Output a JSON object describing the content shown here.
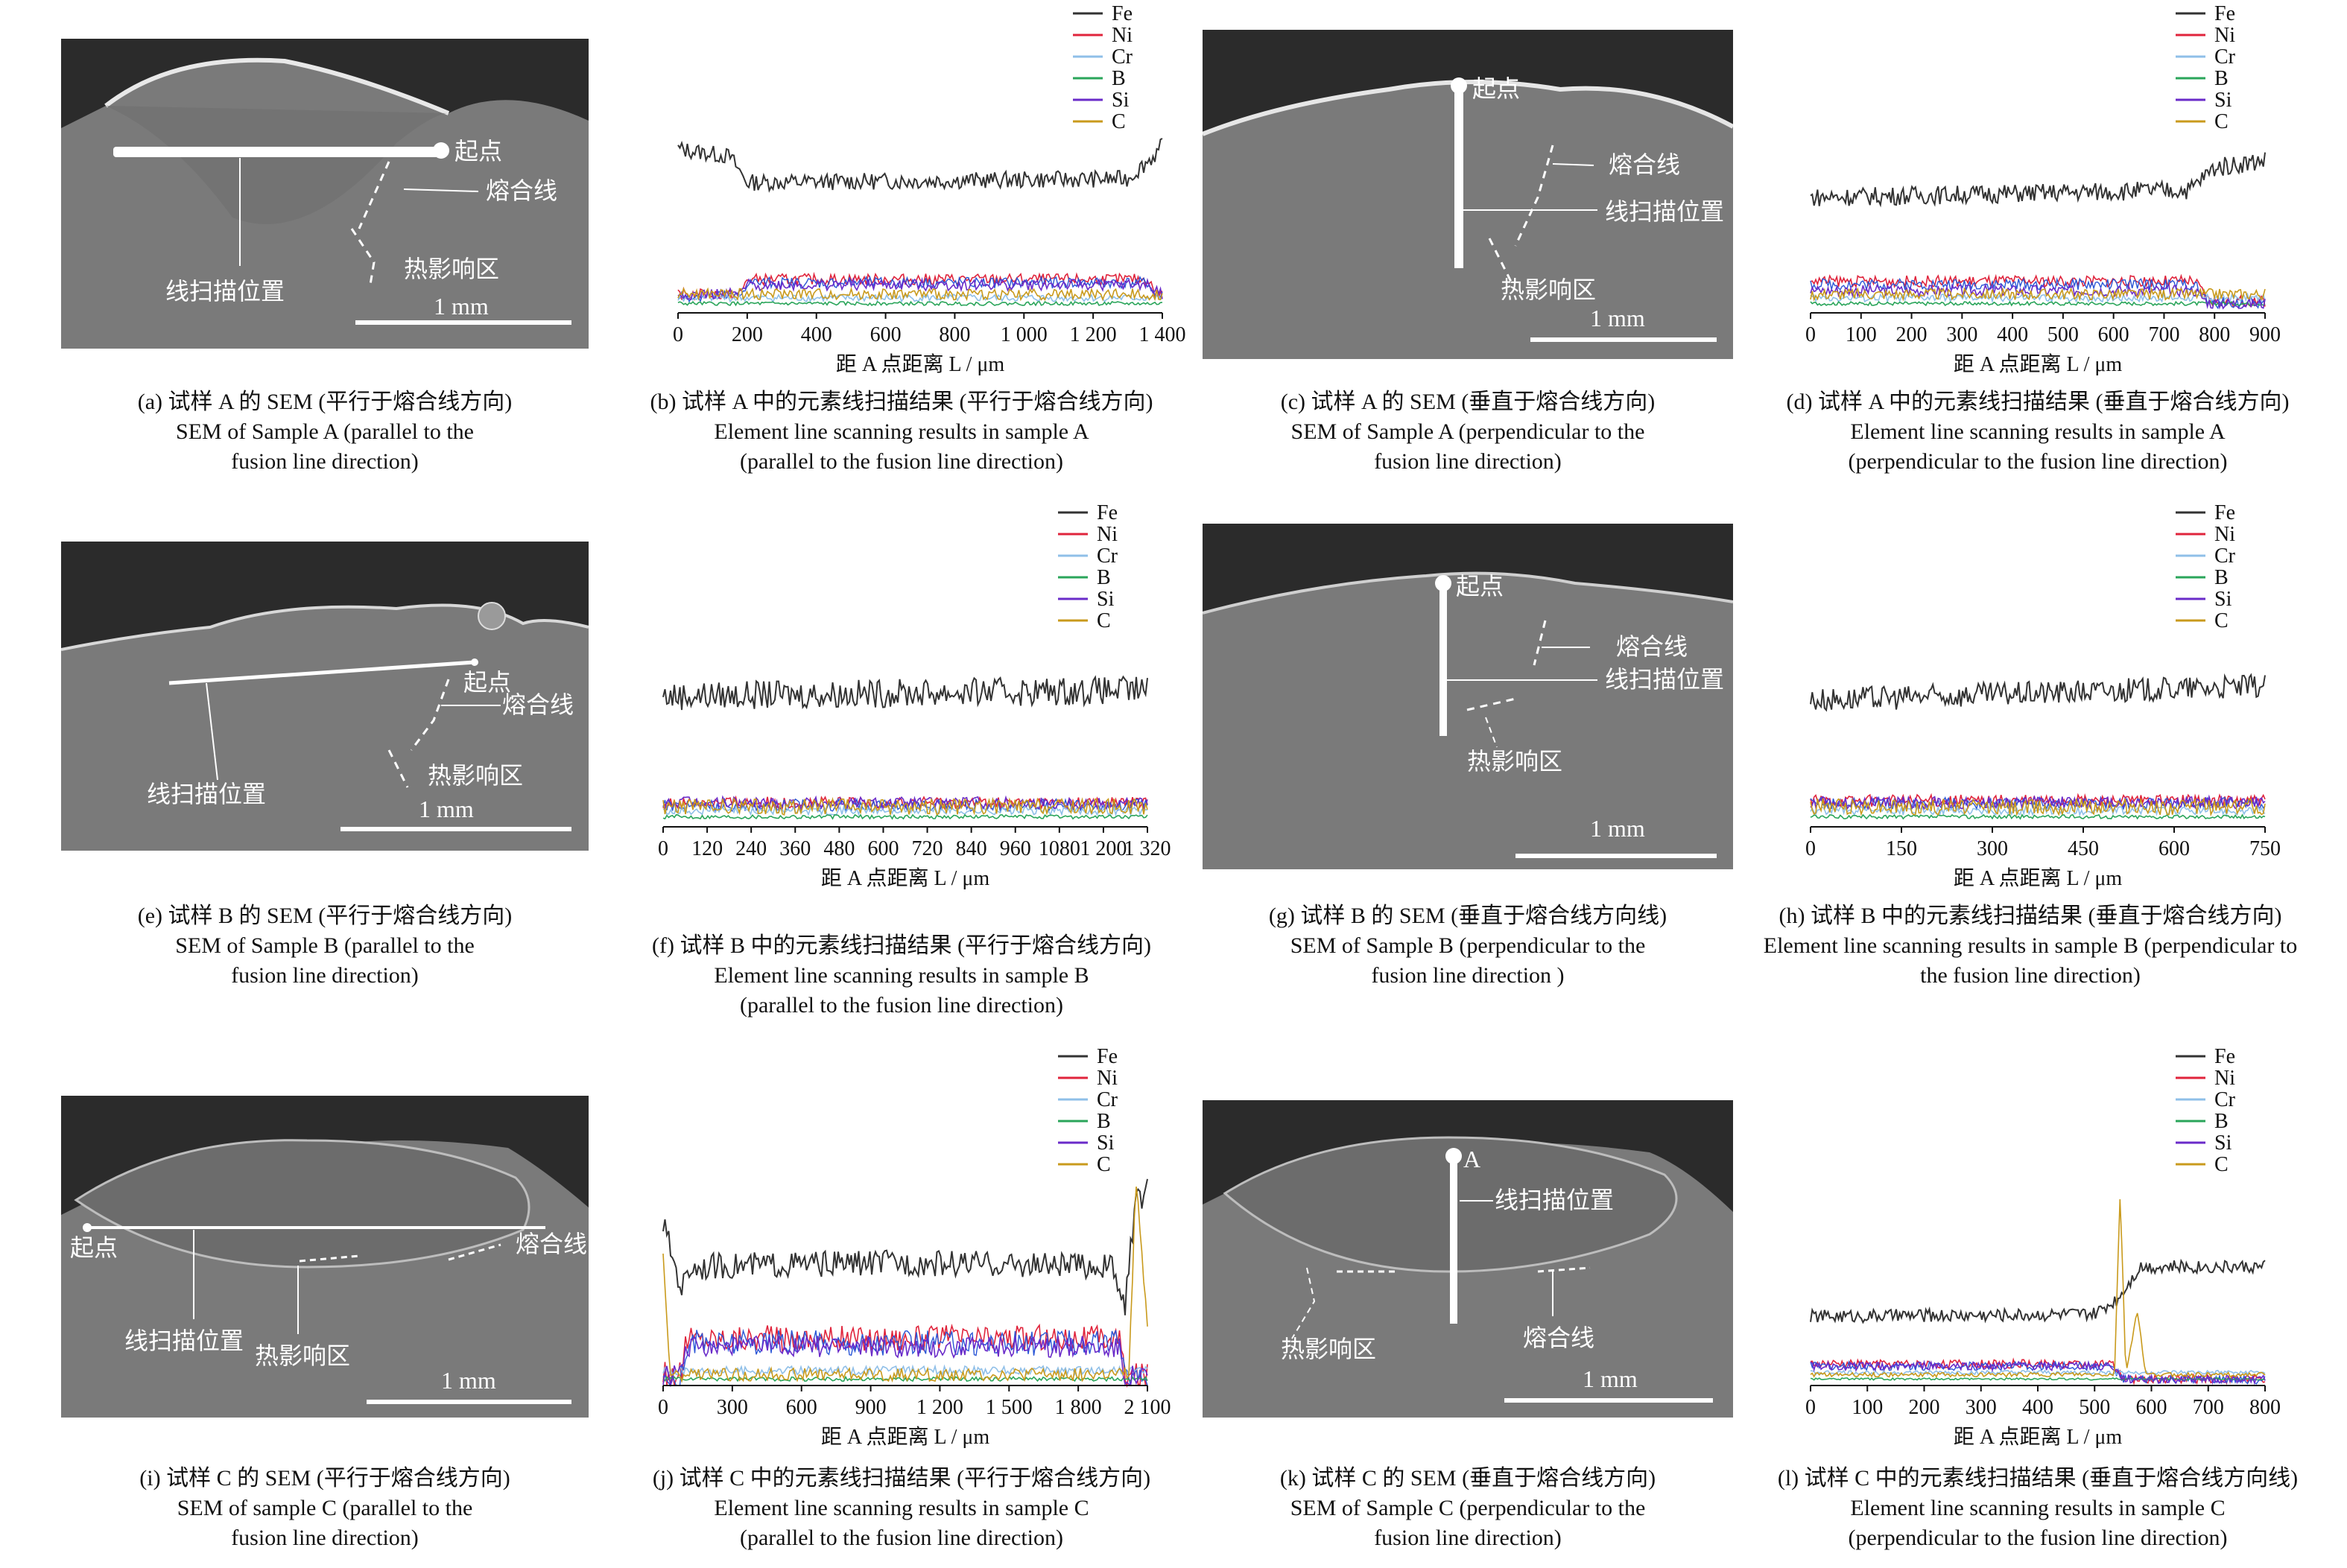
{
  "colors": {
    "Fe": "#333333",
    "Ni": "#e0243c",
    "Cr": "#8fbfe8",
    "B": "#2aa55a",
    "Si": "#6a2bc9",
    "C": "#c99a1c",
    "Ni_blue": "#2a56d6"
  },
  "legend": [
    "Fe",
    "Ni",
    "Cr",
    "B",
    "Si",
    "C"
  ],
  "sem_panels": [
    {
      "id": "a",
      "labels": {
        "start": "起点",
        "fusion": "熔合线",
        "scan": "线扫描位置",
        "haz": "热影响区",
        "scale": "1 mm"
      }
    },
    {
      "id": "c",
      "labels": {
        "start": "起点",
        "fusion": "熔合线",
        "scan": "线扫描位置",
        "haz": "热影响区",
        "scale": "1 mm"
      }
    },
    {
      "id": "e",
      "labels": {
        "start": "起点",
        "fusion": "熔合线",
        "scan": "线扫描位置",
        "haz": "热影响区",
        "scale": "1 mm"
      }
    },
    {
      "id": "g",
      "labels": {
        "start": "起点",
        "fusion": "熔合线",
        "scan": "线扫描位置",
        "haz": "热影响区",
        "scale": "1 mm"
      }
    },
    {
      "id": "i",
      "labels": {
        "start": "起点",
        "fusion": "熔合线",
        "scan": "线扫描位置",
        "haz": "热影响区",
        "scale": "1 mm"
      }
    },
    {
      "id": "k",
      "labels": {
        "start": "A",
        "fusion": "熔合线",
        "scan": "线扫描位置",
        "haz": "热影响区",
        "scale": "1 mm"
      }
    }
  ],
  "captions": {
    "a": [
      "(a) 试样 A 的 SEM (平行于熔合线方向)",
      "SEM of Sample A (parallel to the",
      "fusion line direction)"
    ],
    "b": [
      "(b) 试样 A 中的元素线扫描结果 (平行于熔合线方向)",
      "Element line scanning results in sample A",
      "(parallel to the fusion line direction)"
    ],
    "c": [
      "(c) 试样 A 的 SEM (垂直于熔合线方向)",
      "SEM of Sample A (perpendicular to the",
      "fusion line direction)"
    ],
    "d": [
      "(d) 试样 A 中的元素线扫描结果 (垂直于熔合线方向)",
      "Element line scanning results in sample A",
      "(perpendicular to the fusion line direction)"
    ],
    "e": [
      "(e) 试样 B 的 SEM (平行于熔合线方向)",
      "SEM of Sample B (parallel to the",
      "fusion line direction)"
    ],
    "f": [
      "(f) 试样 B 中的元素线扫描结果 (平行于熔合线方向)",
      "Element line scanning results in sample B",
      "(parallel to the fusion line direction)"
    ],
    "g": [
      "(g) 试样 B 的 SEM (垂直于熔合线方向线)",
      "SEM of Sample B (perpendicular to the",
      "fusion line direction )"
    ],
    "h": [
      "(h) 试样 B 中的元素线扫描结果 (垂直于熔合线方向)",
      "Element line scanning results in sample B (perpendicular to",
      "the fusion line direction)"
    ],
    "i": [
      "(i) 试样 C 的 SEM (平行于熔合线方向)",
      "SEM of sample C (parallel to the",
      "fusion line direction)"
    ],
    "j": [
      "(j) 试样 C 中的元素线扫描结果 (平行于熔合线方向)",
      "Element line scanning results in sample C",
      "(parallel to the fusion line direction)"
    ],
    "k": [
      "(k) 试样 C 的 SEM (垂直于熔合线方向)",
      "SEM of Sample C (perpendicular to the",
      "fusion line direction)"
    ],
    "l": [
      "(l) 试样 C 中的元素线扫描结果 (垂直于熔合线方向线)",
      "Element line scanning results in sample C",
      "(perpendicular to the fusion line direction)"
    ]
  },
  "chart_data": [
    {
      "id": "b",
      "type": "line",
      "xlabel": "距 A 点距离 L / μm",
      "xlim": [
        0,
        1400
      ],
      "ticks": [
        0,
        200,
        400,
        600,
        800,
        1000,
        1200,
        1400
      ],
      "tick_labels": [
        "0",
        "200",
        "400",
        "600",
        "800",
        "1 000",
        "1 200",
        "1 400"
      ],
      "series": [
        {
          "name": "Fe",
          "level": [
            [
              0,
              0.88
            ],
            [
              150,
              0.84
            ],
            [
              200,
              0.7
            ],
            [
              1300,
              0.72
            ],
            [
              1380,
              0.85
            ],
            [
              1400,
              0.9
            ]
          ],
          "noise": 0.045
        },
        {
          "name": "Ni",
          "level": [
            [
              0,
              0.1
            ],
            [
              180,
              0.1
            ],
            [
              200,
              0.18
            ],
            [
              1360,
              0.18
            ],
            [
              1380,
              0.1
            ],
            [
              1400,
              0.1
            ]
          ],
          "noise": 0.03
        },
        {
          "name": "Cr",
          "level": [
            [
              0,
              0.08
            ],
            [
              1400,
              0.08
            ]
          ],
          "noise": 0.02
        },
        {
          "name": "B",
          "level": [
            [
              0,
              0.05
            ],
            [
              1400,
              0.05
            ]
          ],
          "noise": 0.01
        },
        {
          "name": "Si",
          "level": [
            [
              0,
              0.1
            ],
            [
              180,
              0.1
            ],
            [
              200,
              0.15
            ],
            [
              1360,
              0.15
            ],
            [
              1400,
              0.1
            ]
          ],
          "noise": 0.03
        },
        {
          "name": "C",
          "level": [
            [
              0,
              0.1
            ],
            [
              1400,
              0.1
            ]
          ],
          "noise": 0.03
        }
      ]
    },
    {
      "id": "d",
      "type": "line",
      "xlabel": "距 A 点距离 L / μm",
      "xlim": [
        0,
        900
      ],
      "ticks": [
        0,
        100,
        200,
        300,
        400,
        500,
        600,
        700,
        800,
        900
      ],
      "tick_labels": [
        "0",
        "100",
        "200",
        "300",
        "400",
        "500",
        "600",
        "700",
        "800",
        "900"
      ],
      "series": [
        {
          "name": "Fe",
          "level": [
            [
              0,
              0.62
            ],
            [
              750,
              0.66
            ],
            [
              800,
              0.78
            ],
            [
              900,
              0.82
            ]
          ],
          "noise": 0.05
        },
        {
          "name": "Ni",
          "level": [
            [
              0,
              0.17
            ],
            [
              760,
              0.17
            ],
            [
              790,
              0.06
            ],
            [
              900,
              0.06
            ]
          ],
          "noise": 0.03
        },
        {
          "name": "Cr",
          "level": [
            [
              0,
              0.08
            ],
            [
              900,
              0.08
            ]
          ],
          "noise": 0.02
        },
        {
          "name": "B",
          "level": [
            [
              0,
              0.05
            ],
            [
              900,
              0.05
            ]
          ],
          "noise": 0.01
        },
        {
          "name": "Si",
          "level": [
            [
              0,
              0.12
            ],
            [
              760,
              0.12
            ],
            [
              790,
              0.05
            ],
            [
              900,
              0.05
            ]
          ],
          "noise": 0.03
        },
        {
          "name": "C",
          "level": [
            [
              0,
              0.1
            ],
            [
              900,
              0.1
            ]
          ],
          "noise": 0.03
        }
      ]
    },
    {
      "id": "f",
      "type": "line",
      "xlabel": "距 A 点距离 L / μm",
      "xlim": [
        0,
        1320
      ],
      "ticks": [
        0,
        120,
        240,
        360,
        480,
        600,
        720,
        840,
        960,
        1080,
        1200,
        1320
      ],
      "tick_labels": [
        "0",
        "120",
        "240",
        "360",
        "480",
        "600",
        "720",
        "840",
        "960",
        "1080",
        "1 200",
        "1 320"
      ],
      "series": [
        {
          "name": "Fe",
          "level": [
            [
              0,
              0.65
            ],
            [
              1320,
              0.68
            ]
          ],
          "noise": 0.07
        },
        {
          "name": "Ni",
          "level": [
            [
              0,
              0.12
            ],
            [
              1320,
              0.12
            ]
          ],
          "noise": 0.03
        },
        {
          "name": "Cr",
          "level": [
            [
              0,
              0.08
            ],
            [
              1320,
              0.08
            ]
          ],
          "noise": 0.02
        },
        {
          "name": "B",
          "level": [
            [
              0,
              0.05
            ],
            [
              1320,
              0.05
            ]
          ],
          "noise": 0.01
        },
        {
          "name": "Si",
          "level": [
            [
              0,
              0.12
            ],
            [
              1320,
              0.12
            ]
          ],
          "noise": 0.03
        },
        {
          "name": "C",
          "level": [
            [
              0,
              0.1
            ],
            [
              1320,
              0.1
            ]
          ],
          "noise": 0.04
        }
      ]
    },
    {
      "id": "h",
      "type": "line",
      "xlabel": "距 A 点距离 L / μm",
      "xlim": [
        0,
        750
      ],
      "ticks": [
        0,
        150,
        300,
        450,
        600,
        750
      ],
      "tick_labels": [
        "0",
        "150",
        "300",
        "450",
        "600",
        "750"
      ],
      "series": [
        {
          "name": "Fe",
          "level": [
            [
              0,
              0.63
            ],
            [
              750,
              0.7
            ]
          ],
          "noise": 0.06
        },
        {
          "name": "Ni",
          "level": [
            [
              0,
              0.13
            ],
            [
              750,
              0.13
            ]
          ],
          "noise": 0.03
        },
        {
          "name": "Cr",
          "level": [
            [
              0,
              0.08
            ],
            [
              750,
              0.08
            ]
          ],
          "noise": 0.02
        },
        {
          "name": "B",
          "level": [
            [
              0,
              0.05
            ],
            [
              750,
              0.05
            ]
          ],
          "noise": 0.01
        },
        {
          "name": "Si",
          "level": [
            [
              0,
              0.12
            ],
            [
              750,
              0.12
            ]
          ],
          "noise": 0.03
        },
        {
          "name": "C",
          "level": [
            [
              0,
              0.1
            ],
            [
              750,
              0.1
            ]
          ],
          "noise": 0.04
        }
      ]
    },
    {
      "id": "j",
      "type": "line",
      "xlabel": "距 A 点距离 L / μm",
      "xlim": [
        0,
        2100
      ],
      "ticks": [
        0,
        300,
        600,
        900,
        1200,
        1500,
        1800,
        2100
      ],
      "tick_labels": [
        "0",
        "300",
        "600",
        "900",
        "1 200",
        "1 500",
        "1 800",
        "2 100"
      ],
      "series": [
        {
          "name": "Fe",
          "level": [
            [
              0,
              0.75
            ],
            [
              80,
              0.45
            ],
            [
              120,
              0.55
            ],
            [
              1000,
              0.57
            ],
            [
              1950,
              0.55
            ],
            [
              2000,
              0.35
            ],
            [
              2050,
              0.85
            ],
            [
              2100,
              0.9
            ]
          ],
          "noise": 0.06
        },
        {
          "name": "Ni",
          "level": [
            [
              0,
              0.05
            ],
            [
              80,
              0.05
            ],
            [
              100,
              0.22
            ],
            [
              1980,
              0.22
            ],
            [
              2000,
              0.05
            ],
            [
              2100,
              0.05
            ]
          ],
          "noise": 0.06
        },
        {
          "name": "Cr",
          "level": [
            [
              0,
              0.07
            ],
            [
              2100,
              0.07
            ]
          ],
          "noise": 0.02
        },
        {
          "name": "B",
          "level": [
            [
              0,
              0.03
            ],
            [
              2100,
              0.03
            ]
          ],
          "noise": 0.01
        },
        {
          "name": "Si",
          "level": [
            [
              0,
              0.05
            ],
            [
              80,
              0.05
            ],
            [
              100,
              0.18
            ],
            [
              1980,
              0.18
            ],
            [
              2000,
              0.05
            ],
            [
              2100,
              0.05
            ]
          ],
          "noise": 0.05
        },
        {
          "name": "C",
          "level": [
            [
              0,
              0.6
            ],
            [
              30,
              0.05
            ],
            [
              2020,
              0.05
            ],
            [
              2050,
              0.95
            ],
            [
              2100,
              0.3
            ]
          ],
          "noise": 0.03
        }
      ]
    },
    {
      "id": "l",
      "type": "line",
      "xlabel": "距 A 点距离 L / μm",
      "xlim": [
        0,
        800
      ],
      "ticks": [
        0,
        100,
        200,
        300,
        400,
        500,
        600,
        700,
        800
      ],
      "tick_labels": [
        "0",
        "100",
        "200",
        "300",
        "400",
        "500",
        "600",
        "700",
        "800"
      ],
      "series": [
        {
          "name": "Fe",
          "level": [
            [
              0,
              0.32
            ],
            [
              500,
              0.33
            ],
            [
              540,
              0.4
            ],
            [
              580,
              0.55
            ],
            [
              800,
              0.55
            ]
          ],
          "noise": 0.03
        },
        {
          "name": "Ni",
          "level": [
            [
              0,
              0.1
            ],
            [
              530,
              0.1
            ],
            [
              550,
              0.03
            ],
            [
              800,
              0.03
            ]
          ],
          "noise": 0.02
        },
        {
          "name": "Cr",
          "level": [
            [
              0,
              0.06
            ],
            [
              800,
              0.06
            ]
          ],
          "noise": 0.01
        },
        {
          "name": "B",
          "level": [
            [
              0,
              0.03
            ],
            [
              800,
              0.03
            ]
          ],
          "noise": 0.005
        },
        {
          "name": "Si",
          "level": [
            [
              0,
              0.09
            ],
            [
              530,
              0.09
            ],
            [
              550,
              0.03
            ],
            [
              800,
              0.03
            ]
          ],
          "noise": 0.02
        },
        {
          "name": "C",
          "level": [
            [
              0,
              0.05
            ],
            [
              535,
              0.05
            ],
            [
              545,
              0.9
            ],
            [
              555,
              0.05
            ],
            [
              575,
              0.35
            ],
            [
              590,
              0.05
            ],
            [
              800,
              0.05
            ]
          ],
          "noise": 0.01
        }
      ]
    }
  ]
}
